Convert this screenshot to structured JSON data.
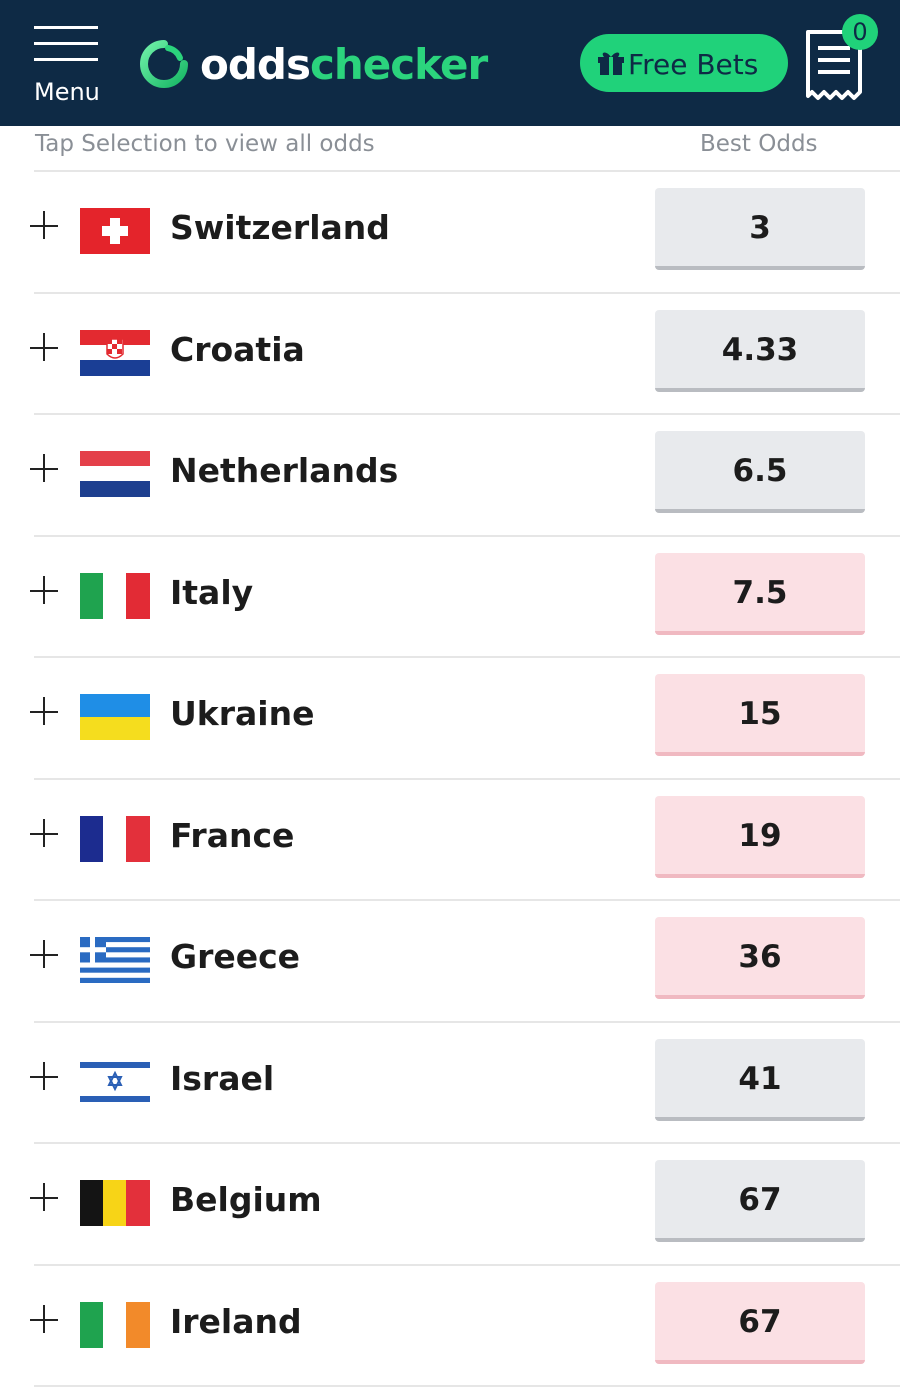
{
  "header": {
    "menu_label": "Menu",
    "logo_part1": "odds",
    "logo_part2": "checker",
    "free_bets_label": "Free Bets",
    "betslip_count": "0"
  },
  "subheader": {
    "hint": "Tap Selection to view all odds",
    "best_odds_label": "Best Odds"
  },
  "colors": {
    "header_bg": "#0e2a45",
    "brand_green": "#20d27a",
    "odds_neutral_bg": "#e8eaed",
    "odds_drift_bg": "#fbe0e4"
  },
  "selections": [
    {
      "name": "Switzerland",
      "odds": "3",
      "status": "neutral",
      "flag_icon": "switzerland-flag-icon"
    },
    {
      "name": "Croatia",
      "odds": "4.33",
      "status": "neutral",
      "flag_icon": "croatia-flag-icon"
    },
    {
      "name": "Netherlands",
      "odds": "6.5",
      "status": "neutral",
      "flag_icon": "netherlands-flag-icon"
    },
    {
      "name": "Italy",
      "odds": "7.5",
      "status": "drifting",
      "flag_icon": "italy-flag-icon"
    },
    {
      "name": "Ukraine",
      "odds": "15",
      "status": "drifting",
      "flag_icon": "ukraine-flag-icon"
    },
    {
      "name": "France",
      "odds": "19",
      "status": "drifting",
      "flag_icon": "france-flag-icon"
    },
    {
      "name": "Greece",
      "odds": "36",
      "status": "drifting",
      "flag_icon": "greece-flag-icon"
    },
    {
      "name": "Israel",
      "odds": "41",
      "status": "neutral",
      "flag_icon": "israel-flag-icon"
    },
    {
      "name": "Belgium",
      "odds": "67",
      "status": "neutral",
      "flag_icon": "belgium-flag-icon"
    },
    {
      "name": "Ireland",
      "odds": "67",
      "status": "drifting",
      "flag_icon": "ireland-flag-icon"
    }
  ]
}
